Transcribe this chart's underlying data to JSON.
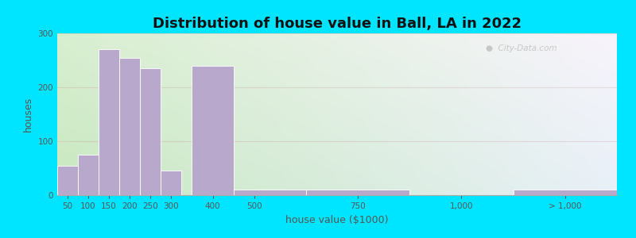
{
  "title": "Distribution of house value in Ball, LA in 2022",
  "xlabel": "house value ($1000)",
  "ylabel": "houses",
  "bar_color": "#b8a9cc",
  "bar_edgecolor": "#ffffff",
  "background_outer": "#00e5ff",
  "grad_topleft": "#d8efd0",
  "grad_topright": "#f8f4fc",
  "grad_botleft": "#c8e8c0",
  "grad_botright": "#e8f0f8",
  "ylim": [
    0,
    300
  ],
  "yticks": [
    0,
    100,
    200,
    300
  ],
  "bar_lefts": [
    25,
    75,
    125,
    175,
    225,
    275,
    350,
    450,
    625,
    875,
    1125
  ],
  "bar_widths": [
    50,
    50,
    50,
    50,
    50,
    50,
    100,
    175,
    250,
    250,
    250
  ],
  "bar_heights": [
    55,
    75,
    270,
    255,
    235,
    45,
    240,
    10,
    10,
    0,
    10
  ],
  "xtick_positions": [
    50,
    100,
    150,
    200,
    250,
    300,
    400,
    500,
    750,
    1000,
    1250
  ],
  "xtick_labels": [
    "50",
    "100",
    "150",
    "200",
    "250",
    "300",
    "400",
    "500",
    "750",
    "1,000",
    "> 1,000"
  ],
  "xlim": [
    25,
    1375
  ],
  "watermark_text": "City-Data.com",
  "grid_color": "#cc9999",
  "grid_alpha": 0.3,
  "title_fontsize": 13,
  "axis_label_fontsize": 9,
  "tick_fontsize": 7.5,
  "tick_color": "#555555",
  "label_color": "#555555"
}
